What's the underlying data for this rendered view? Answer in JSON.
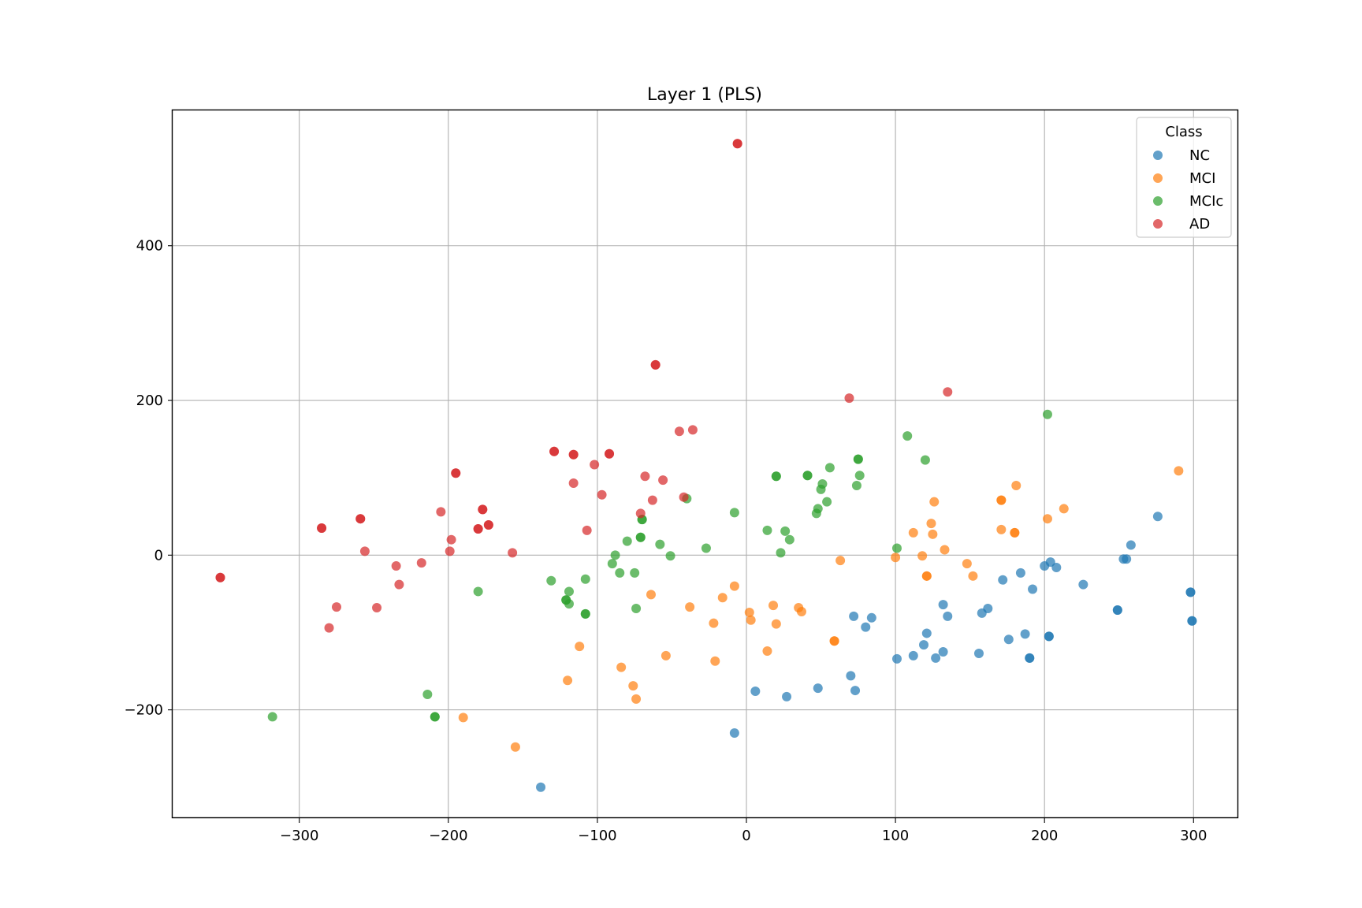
{
  "chart_data": {
    "type": "scatter",
    "title": "Layer 1 (PLS)",
    "xlabel": "",
    "ylabel": "",
    "xlim": [
      -385,
      330
    ],
    "ylim": [
      -340,
      575
    ],
    "xticks": [
      -300,
      -200,
      -100,
      0,
      100,
      200,
      300
    ],
    "yticks": [
      -200,
      0,
      200,
      400
    ],
    "xtick_labels": [
      "−300",
      "−200",
      "−100",
      "0",
      "100",
      "200",
      "300"
    ],
    "ytick_labels": [
      "−200",
      "0",
      "200",
      "400"
    ],
    "grid": true,
    "legend": {
      "title": "Class",
      "placement": "top-right"
    },
    "series": [
      {
        "name": "NC",
        "color": "#1f77b4",
        "points": [
          [
            -138,
            -300
          ],
          [
            -8,
            -230
          ],
          [
            6,
            -176
          ],
          [
            27,
            -183
          ],
          [
            48,
            -172
          ],
          [
            70,
            -156
          ],
          [
            73,
            -175
          ],
          [
            72,
            -79
          ],
          [
            80,
            -93
          ],
          [
            84,
            -81
          ],
          [
            101,
            -134
          ],
          [
            112,
            -130
          ],
          [
            119,
            -116
          ],
          [
            121,
            -101
          ],
          [
            127,
            -133
          ],
          [
            132,
            -125
          ],
          [
            132,
            -64
          ],
          [
            135,
            -79
          ],
          [
            156,
            -127
          ],
          [
            158,
            -75
          ],
          [
            162,
            -69
          ],
          [
            172,
            -32
          ],
          [
            176,
            -109
          ],
          [
            184,
            -23
          ],
          [
            187,
            -102
          ],
          [
            190,
            -133
          ],
          [
            190,
            -133
          ],
          [
            192,
            -44
          ],
          [
            200,
            -14
          ],
          [
            203,
            -105
          ],
          [
            203,
            -105
          ],
          [
            204,
            -9
          ],
          [
            208,
            -16
          ],
          [
            226,
            -38
          ],
          [
            249,
            -71
          ],
          [
            249,
            -71
          ],
          [
            253,
            -5
          ],
          [
            255,
            -5
          ],
          [
            258,
            13
          ],
          [
            276,
            50
          ],
          [
            298,
            -48
          ],
          [
            298,
            -48
          ],
          [
            299,
            -85
          ],
          [
            299,
            -85
          ]
        ]
      },
      {
        "name": "MCI",
        "color": "#ff7f0e",
        "points": [
          [
            -190,
            -210
          ],
          [
            -155,
            -248
          ],
          [
            -120,
            -162
          ],
          [
            -112,
            -118
          ],
          [
            -84,
            -145
          ],
          [
            -76,
            -169
          ],
          [
            -74,
            -186
          ],
          [
            -64,
            -51
          ],
          [
            -54,
            -130
          ],
          [
            -38,
            -67
          ],
          [
            -22,
            -88
          ],
          [
            -21,
            -137
          ],
          [
            -16,
            -55
          ],
          [
            -8,
            -40
          ],
          [
            2,
            -74
          ],
          [
            3,
            -84
          ],
          [
            18,
            -65
          ],
          [
            20,
            -89
          ],
          [
            14,
            -124
          ],
          [
            35,
            -68
          ],
          [
            37,
            -73
          ],
          [
            59,
            -111
          ],
          [
            59,
            -111
          ],
          [
            63,
            -7
          ],
          [
            100,
            -3
          ],
          [
            112,
            29
          ],
          [
            118,
            -1
          ],
          [
            121,
            -27
          ],
          [
            121,
            -27
          ],
          [
            124,
            41
          ],
          [
            125,
            27
          ],
          [
            126,
            69
          ],
          [
            133,
            7
          ],
          [
            148,
            -11
          ],
          [
            152,
            -27
          ],
          [
            171,
            71
          ],
          [
            171,
            71
          ],
          [
            171,
            33
          ],
          [
            180,
            29
          ],
          [
            180,
            29
          ],
          [
            181,
            90
          ],
          [
            202,
            47
          ],
          [
            213,
            60
          ],
          [
            290,
            109
          ]
        ]
      },
      {
        "name": "MCIc",
        "color": "#2ca02c",
        "points": [
          [
            -318,
            -209
          ],
          [
            -214,
            -180
          ],
          [
            -209,
            -209
          ],
          [
            -209,
            -209
          ],
          [
            -180,
            -47
          ],
          [
            -131,
            -33
          ],
          [
            -121,
            -58
          ],
          [
            -121,
            -58
          ],
          [
            -119,
            -47
          ],
          [
            -119,
            -63
          ],
          [
            -108,
            -31
          ],
          [
            -108,
            -76
          ],
          [
            -108,
            -76
          ],
          [
            -90,
            -11
          ],
          [
            -88,
            0
          ],
          [
            -85,
            -23
          ],
          [
            -80,
            18
          ],
          [
            -75,
            -23
          ],
          [
            -74,
            -69
          ],
          [
            -71,
            23
          ],
          [
            -71,
            23
          ],
          [
            -70,
            46
          ],
          [
            -70,
            46
          ],
          [
            -58,
            14
          ],
          [
            -51,
            -1
          ],
          [
            -40,
            73
          ],
          [
            -27,
            9
          ],
          [
            -8,
            55
          ],
          [
            14,
            32
          ],
          [
            20,
            102
          ],
          [
            20,
            102
          ],
          [
            23,
            3
          ],
          [
            26,
            31
          ],
          [
            29,
            20
          ],
          [
            41,
            103
          ],
          [
            41,
            103
          ],
          [
            47,
            54
          ],
          [
            48,
            60
          ],
          [
            50,
            85
          ],
          [
            51,
            92
          ],
          [
            54,
            69
          ],
          [
            56,
            113
          ],
          [
            74,
            90
          ],
          [
            75,
            124
          ],
          [
            75,
            124
          ],
          [
            76,
            103
          ],
          [
            101,
            9
          ],
          [
            108,
            154
          ],
          [
            120,
            123
          ],
          [
            202,
            182
          ]
        ]
      },
      {
        "name": "AD",
        "color": "#d62728",
        "points": [
          [
            -353,
            -29
          ],
          [
            -353,
            -29
          ],
          [
            -285,
            35
          ],
          [
            -285,
            35
          ],
          [
            -280,
            -94
          ],
          [
            -275,
            -67
          ],
          [
            -259,
            47
          ],
          [
            -259,
            47
          ],
          [
            -256,
            5
          ],
          [
            -248,
            -68
          ],
          [
            -235,
            -14
          ],
          [
            -233,
            -38
          ],
          [
            -218,
            -10
          ],
          [
            -205,
            56
          ],
          [
            -199,
            5
          ],
          [
            -198,
            20
          ],
          [
            -195,
            106
          ],
          [
            -195,
            106
          ],
          [
            -180,
            34
          ],
          [
            -180,
            34
          ],
          [
            -177,
            59
          ],
          [
            -177,
            59
          ],
          [
            -173,
            39
          ],
          [
            -173,
            39
          ],
          [
            -157,
            3
          ],
          [
            -129,
            134
          ],
          [
            -129,
            134
          ],
          [
            -116,
            130
          ],
          [
            -116,
            130
          ],
          [
            -116,
            93
          ],
          [
            -107,
            32
          ],
          [
            -102,
            117
          ],
          [
            -97,
            78
          ],
          [
            -92,
            131
          ],
          [
            -92,
            131
          ],
          [
            -71,
            54
          ],
          [
            -68,
            102
          ],
          [
            -63,
            71
          ],
          [
            -61,
            246
          ],
          [
            -61,
            246
          ],
          [
            -56,
            97
          ],
          [
            -45,
            160
          ],
          [
            -42,
            75
          ],
          [
            -36,
            162
          ],
          [
            -6,
            532
          ],
          [
            -6,
            532
          ],
          [
            69,
            203
          ],
          [
            135,
            211
          ]
        ]
      }
    ]
  }
}
